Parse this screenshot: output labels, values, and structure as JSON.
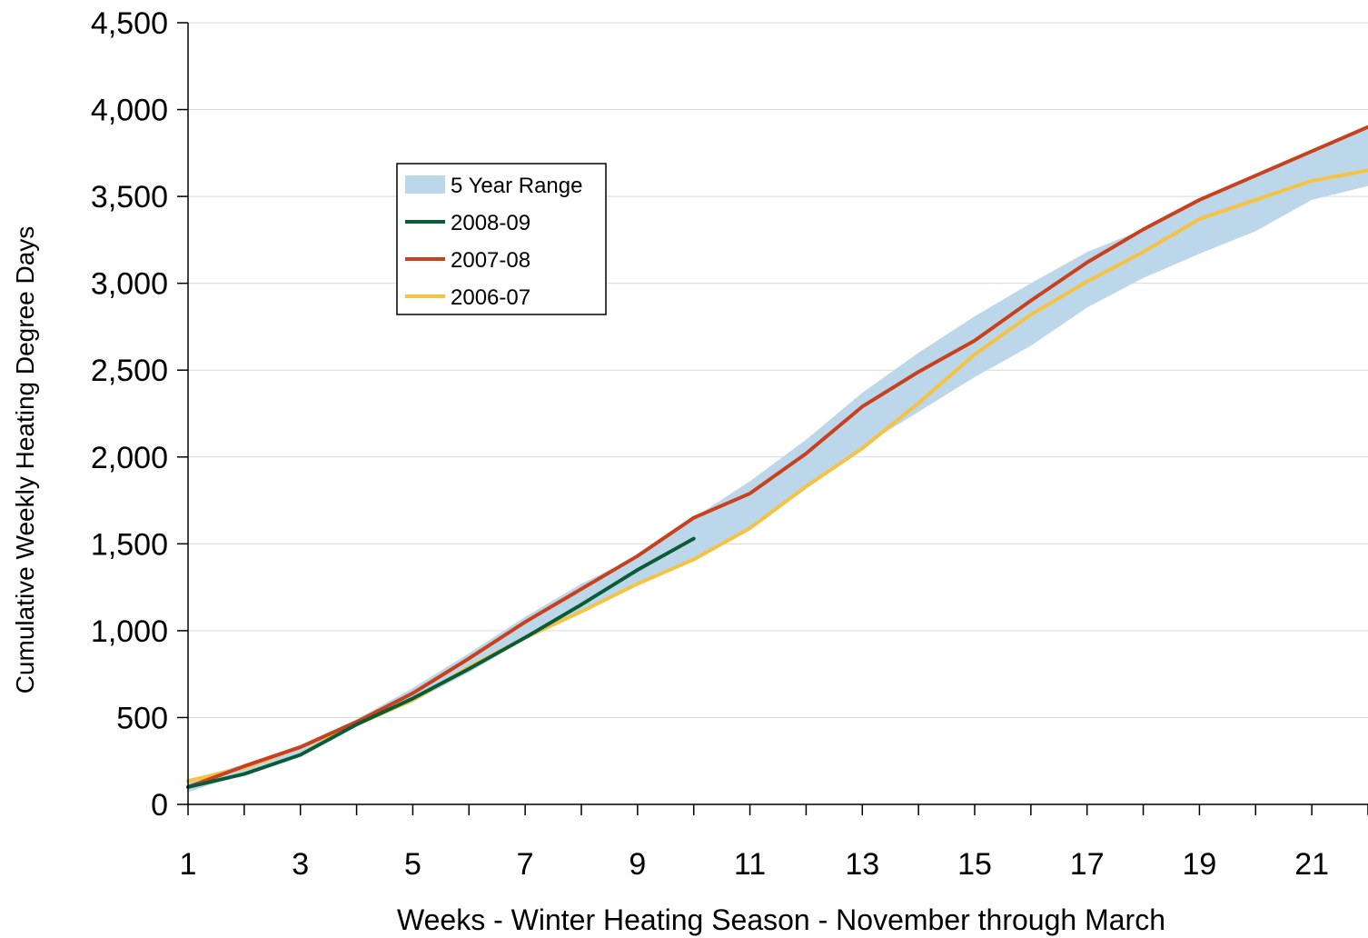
{
  "chart_data": {
    "type": "line",
    "title": "",
    "xlabel": "Weeks - Winter Heating Season - November through March",
    "ylabel": "Cumulative Weekly Heating Degree Days",
    "xlim": [
      1,
      22
    ],
    "ylim": [
      0,
      4500
    ],
    "x_ticks": [
      1,
      3,
      5,
      7,
      9,
      11,
      13,
      15,
      17,
      19,
      21
    ],
    "x_tick_labels": [
      "1",
      "3",
      "5",
      "7",
      "9",
      "11",
      "13",
      "15",
      "17",
      "19",
      "21"
    ],
    "y_ticks": [
      0,
      500,
      1000,
      1500,
      2000,
      2500,
      3000,
      3500,
      4000,
      4500
    ],
    "y_tick_labels": [
      "0",
      "500",
      "1,000",
      "1,500",
      "2,000",
      "2,500",
      "3,000",
      "3,500",
      "4,000",
      "4,500"
    ],
    "grid": "horizontal",
    "legend_position": "upper-left",
    "range_band": {
      "name": "5 Year Range",
      "color": "#bdd7ea",
      "x": [
        1,
        2,
        3,
        4,
        5,
        6,
        7,
        8,
        9,
        10,
        11,
        12,
        13,
        14,
        15,
        16,
        17,
        18,
        19,
        20,
        21,
        22
      ],
      "low": [
        70,
        180,
        290,
        450,
        590,
        760,
        950,
        1120,
        1270,
        1410,
        1590,
        1820,
        2060,
        2260,
        2460,
        2640,
        2860,
        3030,
        3170,
        3300,
        3480,
        3560
      ],
      "high": [
        140,
        230,
        340,
        490,
        670,
        870,
        1080,
        1270,
        1430,
        1650,
        1860,
        2100,
        2370,
        2600,
        2810,
        3000,
        3180,
        3310,
        3470,
        3630,
        3770,
        3910
      ]
    },
    "series": [
      {
        "name": "2008-09",
        "color": "#0a5c36",
        "x": [
          1,
          2,
          3,
          4,
          5,
          6,
          7,
          8,
          9,
          10
        ],
        "values": [
          100,
          175,
          285,
          460,
          610,
          780,
          960,
          1150,
          1350,
          1530
        ]
      },
      {
        "name": "2007-08",
        "color": "#c8401c",
        "x": [
          1,
          2,
          3,
          4,
          5,
          6,
          7,
          8,
          9,
          10,
          11,
          12,
          13,
          14,
          15,
          16,
          17,
          18,
          19,
          20,
          21,
          22
        ],
        "values": [
          100,
          220,
          330,
          475,
          640,
          840,
          1050,
          1240,
          1430,
          1650,
          1790,
          2020,
          2290,
          2490,
          2670,
          2900,
          3120,
          3310,
          3480,
          3620,
          3760,
          3900
        ]
      },
      {
        "name": "2006-07",
        "color": "#f5c242",
        "x": [
          1,
          2,
          3,
          4,
          5,
          6,
          7,
          8,
          9,
          10,
          11,
          12,
          13,
          14,
          15,
          16,
          17,
          18,
          19,
          20,
          21,
          22
        ],
        "values": [
          135,
          210,
          330,
          460,
          600,
          790,
          960,
          1110,
          1270,
          1410,
          1590,
          1830,
          2050,
          2310,
          2590,
          2820,
          3010,
          3180,
          3370,
          3480,
          3590,
          3650
        ]
      }
    ]
  }
}
